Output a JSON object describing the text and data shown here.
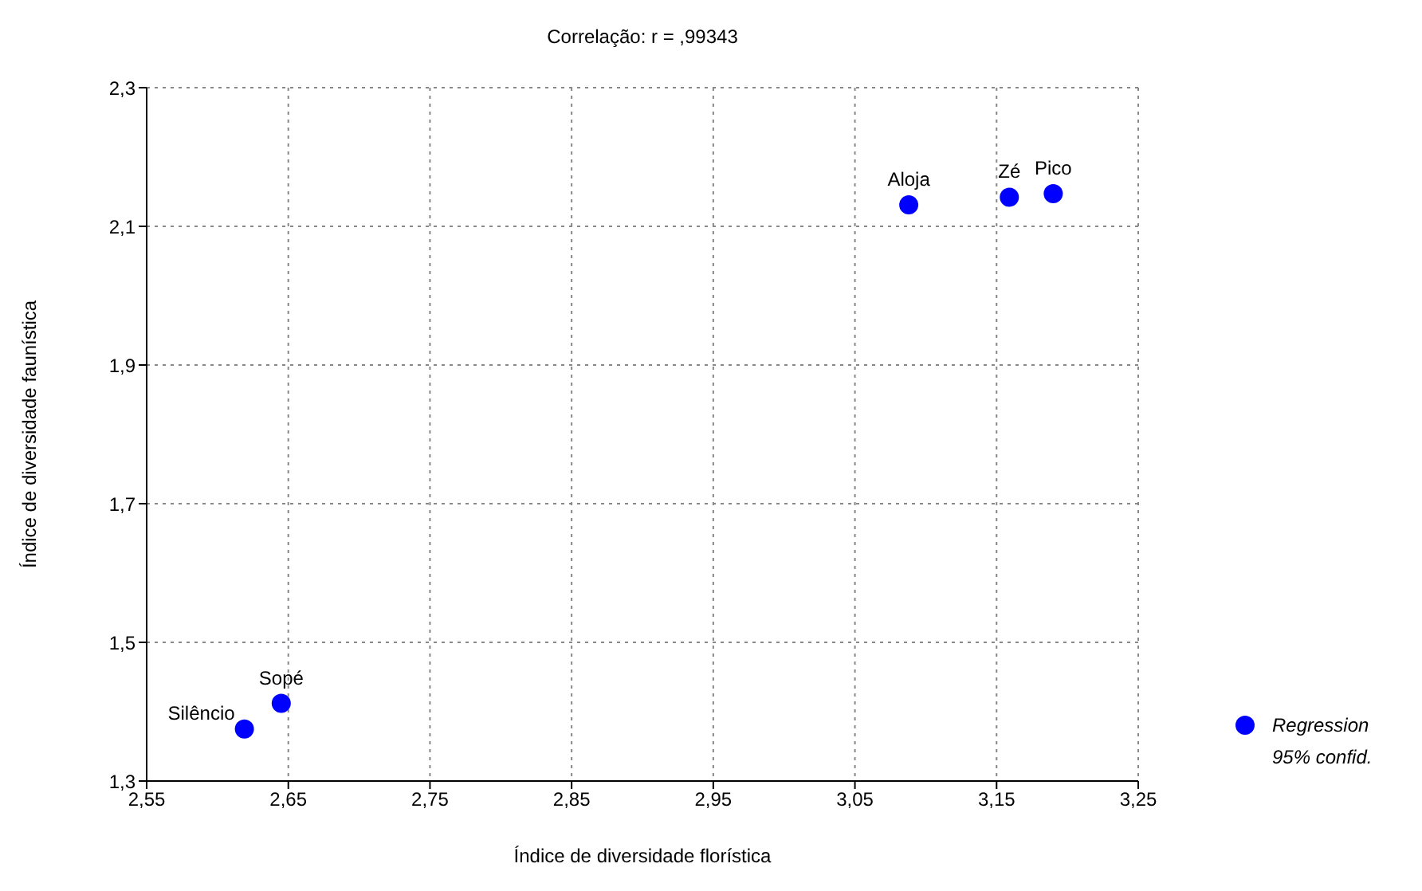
{
  "chart_data": {
    "type": "scatter",
    "title": "Correlação: r = ,99343",
    "xlabel": "Índice de diversidade florística",
    "ylabel": "Índice de diversidade faunística",
    "x": [
      2.619,
      2.645,
      3.088,
      3.159,
      3.19
    ],
    "series": [
      {
        "name": "Regression",
        "color": "#0000ff",
        "values": [
          1.375,
          1.412,
          2.131,
          2.142,
          2.147
        ]
      }
    ],
    "xlim": [
      2.55,
      3.25
    ],
    "xticks": [
      {
        "value": 2.55,
        "label": "2,55"
      },
      {
        "value": 2.65,
        "label": "2,65"
      },
      {
        "value": 2.75,
        "label": "2,75"
      },
      {
        "value": 2.85,
        "label": "2,85"
      },
      {
        "value": 2.95,
        "label": "2,95"
      },
      {
        "value": 3.05,
        "label": "3,05"
      },
      {
        "value": 3.15,
        "label": "3,15"
      },
      {
        "value": 3.25,
        "label": "3,25"
      }
    ],
    "ylim": [
      1.3,
      2.3
    ],
    "yticks": [
      {
        "value": 1.3,
        "label": "1,3"
      },
      {
        "value": 1.5,
        "label": "1,5"
      },
      {
        "value": 1.7,
        "label": "1,7"
      },
      {
        "value": 1.9,
        "label": "1,9"
      },
      {
        "value": 2.1,
        "label": "2,1"
      },
      {
        "value": 2.3,
        "label": "2,3"
      }
    ],
    "grid": true,
    "legend": "right",
    "marker": "circle",
    "annotations": [
      {
        "text": "Silêncio",
        "x": 2.619,
        "y": 1.375
      },
      {
        "text": "Sopé",
        "x": 2.645,
        "y": 1.412
      },
      {
        "text": "Aloja",
        "x": 3.088,
        "y": 2.131
      },
      {
        "text": "Zé",
        "x": 3.159,
        "y": 2.142
      },
      {
        "text": "Pico",
        "x": 3.19,
        "y": 2.147
      },
      "95% confid."
    ]
  }
}
